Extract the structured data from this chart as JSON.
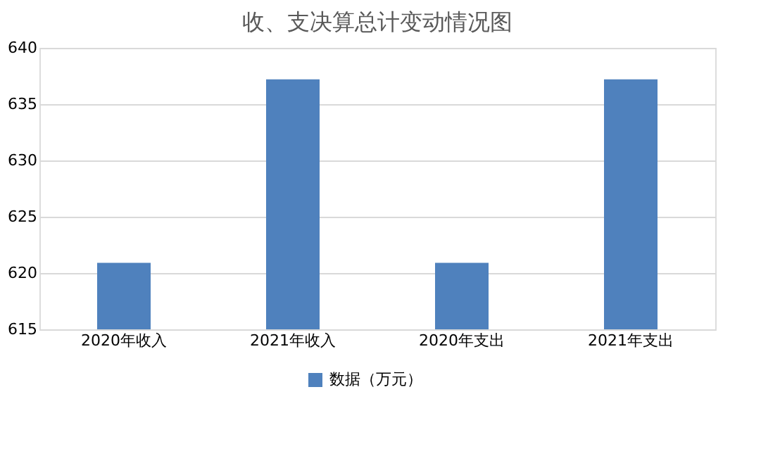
{
  "chart_data": {
    "type": "bar",
    "title": "收、支决算总计变动情况图",
    "categories": [
      "2020年收入",
      "2021年收入",
      "2020年支出",
      "2021年支出"
    ],
    "series": [
      {
        "name": "数据（万元）",
        "color": "#4f81bd",
        "values": [
          620.9,
          637.2,
          620.9,
          637.2
        ]
      }
    ],
    "ylim": [
      615,
      640
    ],
    "yticks": [
      615,
      620,
      625,
      630,
      635,
      640
    ],
    "grid": "y",
    "legend": "bottom"
  }
}
